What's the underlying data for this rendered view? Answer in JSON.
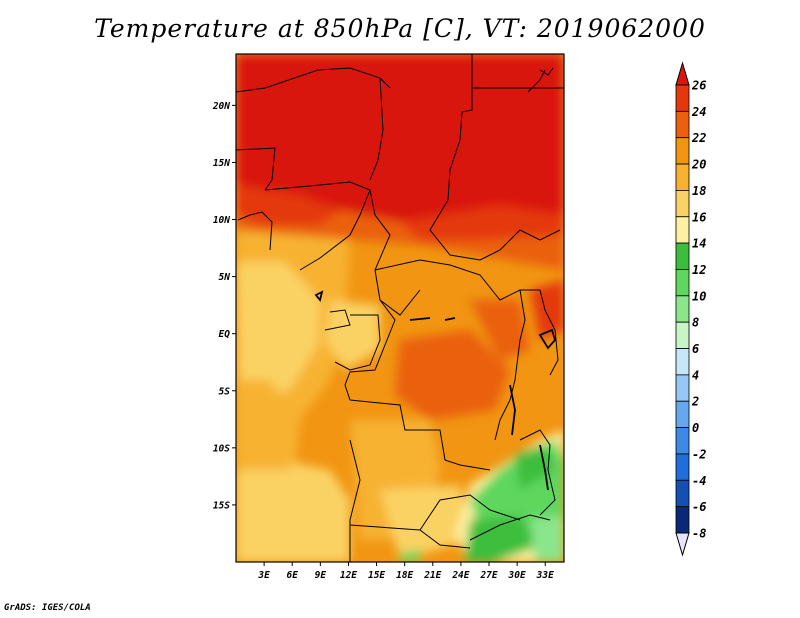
{
  "title": "Temperature at 850hPa [C], VT: 2019062000",
  "credit": "GrADS: IGES/COLA",
  "map": {
    "lat_ticks": [
      "20N",
      "15N",
      "10N",
      "5N",
      "EQ",
      "5S",
      "10S",
      "15S"
    ],
    "lon_ticks": [
      "3E",
      "6E",
      "9E",
      "12E",
      "15E",
      "18E",
      "21E",
      "24E",
      "27E",
      "30E",
      "33E"
    ],
    "lat_values": [
      20,
      15,
      10,
      5,
      0,
      -5,
      -10,
      -15
    ],
    "lon_values": [
      3,
      6,
      9,
      12,
      15,
      18,
      21,
      24,
      27,
      30,
      33
    ],
    "lat_range": [
      -20,
      24.5
    ],
    "lon_range": [
      0,
      35
    ]
  },
  "colorbar": {
    "levels": [
      "26",
      "24",
      "22",
      "20",
      "18",
      "16",
      "14",
      "12",
      "10",
      "8",
      "6",
      "4",
      "2",
      "0",
      "-2",
      "-4",
      "-6",
      "-8"
    ],
    "colors": [
      "#d9160c",
      "#e4380c",
      "#ea600f",
      "#f19512",
      "#f7b230",
      "#fad264",
      "#fdf0a0",
      "#3cbe3c",
      "#5fd75f",
      "#8be68b",
      "#c8f5c8",
      "#c6e6fa",
      "#96c8f5",
      "#64a8ef",
      "#3c8ae6",
      "#1e6edc",
      "#1450b4",
      "#0a2878",
      "#e6e6fa"
    ]
  }
}
